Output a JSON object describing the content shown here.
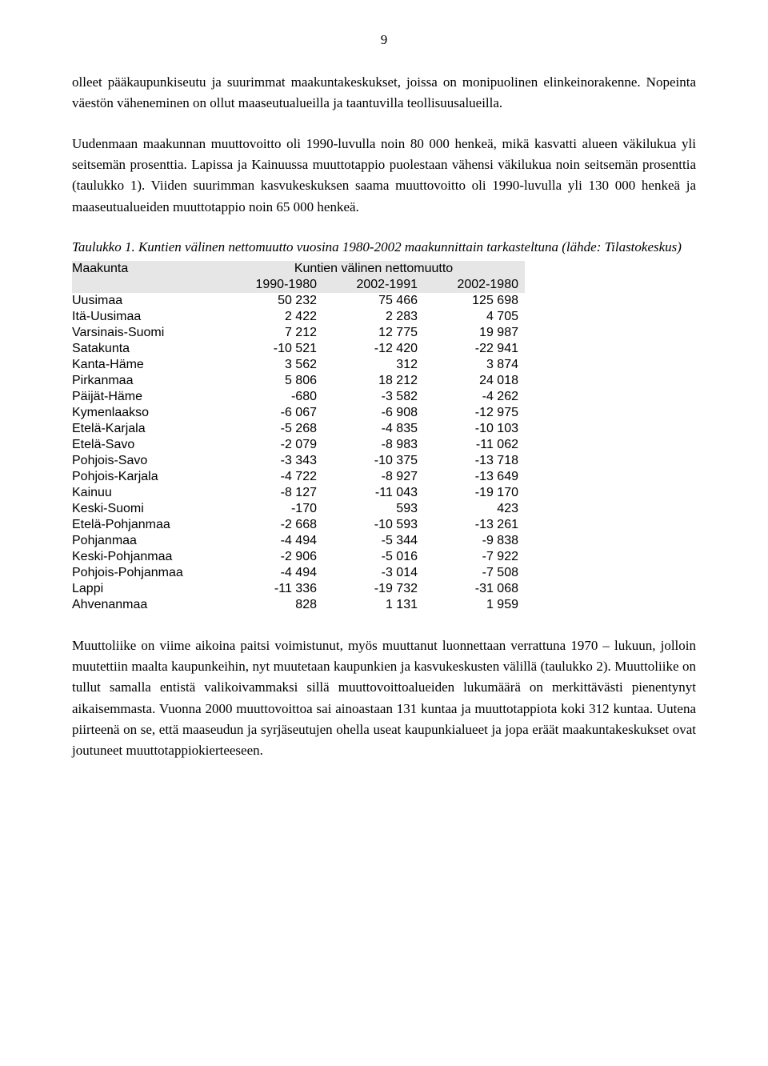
{
  "page_number": "9",
  "para1": "olleet pääkaupunkiseutu ja suurimmat maakuntakeskukset, joissa on monipuolinen elinkeinorakenne. Nopeinta väestön väheneminen on ollut maaseutualueilla ja taantuvilla teollisuusalueilla.",
  "para2": "Uudenmaan maakunnan muuttovoitto oli 1990-luvulla noin 80 000 henkeä, mikä kasvatti alueen väkilukua yli seitsemän prosenttia. Lapissa ja Kainuussa muuttotappio puolestaan vähensi väkilukua noin seitsemän prosenttia (taulukko 1). Viiden suurimman kasvukeskuksen saama muuttovoitto oli 1990-luvulla yli 130 000 henkeä ja maaseutualueiden muuttotappio noin 65 000 henkeä.",
  "table_caption": "Taulukko 1. Kuntien välinen nettomuutto vuosina 1980-2002 maakunnittain tarkasteltuna (lähde: Tilastokeskus)",
  "table": {
    "header": {
      "c0": "Maakunta",
      "c1_3": "Kuntien välinen nettomuutto"
    },
    "subheader": {
      "c1": "1990-1980",
      "c2": "2002-1991",
      "c3": "2002-1980"
    },
    "rows": [
      {
        "label": "Uusimaa",
        "c1": "50 232",
        "c2": "75 466",
        "c3": "125 698"
      },
      {
        "label": "Itä-Uusimaa",
        "c1": "2 422",
        "c2": "2 283",
        "c3": "4 705"
      },
      {
        "label": "Varsinais-Suomi",
        "c1": "7 212",
        "c2": "12 775",
        "c3": "19 987"
      },
      {
        "label": "Satakunta",
        "c1": "-10 521",
        "c2": "-12 420",
        "c3": "-22 941"
      },
      {
        "label": "Kanta-Häme",
        "c1": "3 562",
        "c2": "312",
        "c3": "3 874"
      },
      {
        "label": "Pirkanmaa",
        "c1": "5 806",
        "c2": "18 212",
        "c3": "24 018"
      },
      {
        "label": "Päijät-Häme",
        "c1": "-680",
        "c2": "-3 582",
        "c3": "-4 262"
      },
      {
        "label": "Kymenlaakso",
        "c1": "-6 067",
        "c2": "-6 908",
        "c3": "-12 975"
      },
      {
        "label": "Etelä-Karjala",
        "c1": "-5 268",
        "c2": "-4 835",
        "c3": "-10 103"
      },
      {
        "label": "Etelä-Savo",
        "c1": "-2 079",
        "c2": "-8 983",
        "c3": "-11 062"
      },
      {
        "label": "Pohjois-Savo",
        "c1": "-3 343",
        "c2": "-10 375",
        "c3": "-13 718"
      },
      {
        "label": "Pohjois-Karjala",
        "c1": "-4 722",
        "c2": "-8 927",
        "c3": "-13 649"
      },
      {
        "label": "Kainuu",
        "c1": "-8 127",
        "c2": "-11 043",
        "c3": "-19 170"
      },
      {
        "label": "Keski-Suomi",
        "c1": "-170",
        "c2": "593",
        "c3": "423"
      },
      {
        "label": "Etelä-Pohjanmaa",
        "c1": "-2 668",
        "c2": "-10 593",
        "c3": "-13 261"
      },
      {
        "label": "Pohjanmaa",
        "c1": "-4 494",
        "c2": "-5 344",
        "c3": "-9 838"
      },
      {
        "label": "Keski-Pohjanmaa",
        "c1": "-2 906",
        "c2": "-5 016",
        "c3": "-7 922"
      },
      {
        "label": "Pohjois-Pohjanmaa",
        "c1": "-4 494",
        "c2": "-3 014",
        "c3": "-7 508"
      },
      {
        "label": "Lappi",
        "c1": "-11 336",
        "c2": "-19 732",
        "c3": "-31 068"
      },
      {
        "label": "Ahvenanmaa",
        "c1": "828",
        "c2": "1 131",
        "c3": "1 959"
      }
    ]
  },
  "para3": "Muuttoliike on viime aikoina paitsi voimistunut, myös muuttanut luonnettaan verrattuna 1970 – lukuun, jolloin muutettiin maalta kaupunkeihin, nyt muutetaan kaupunkien ja kasvukeskusten välillä (taulukko 2). Muuttoliike on tullut samalla entistä valikoivammaksi sillä muuttovoittoalueiden lukumäärä on merkittävästi pienentynyt aikaisemmasta. Vuonna 2000 muuttovoittoa sai ainoastaan 131 kuntaa ja muuttotappiota koki 312 kuntaa. Uutena piirteenä on se, että maaseudun ja syrjäseutujen ohella useat kaupunkialueet ja jopa eräät maakuntakeskukset ovat joutuneet muuttotappiokierteeseen."
}
